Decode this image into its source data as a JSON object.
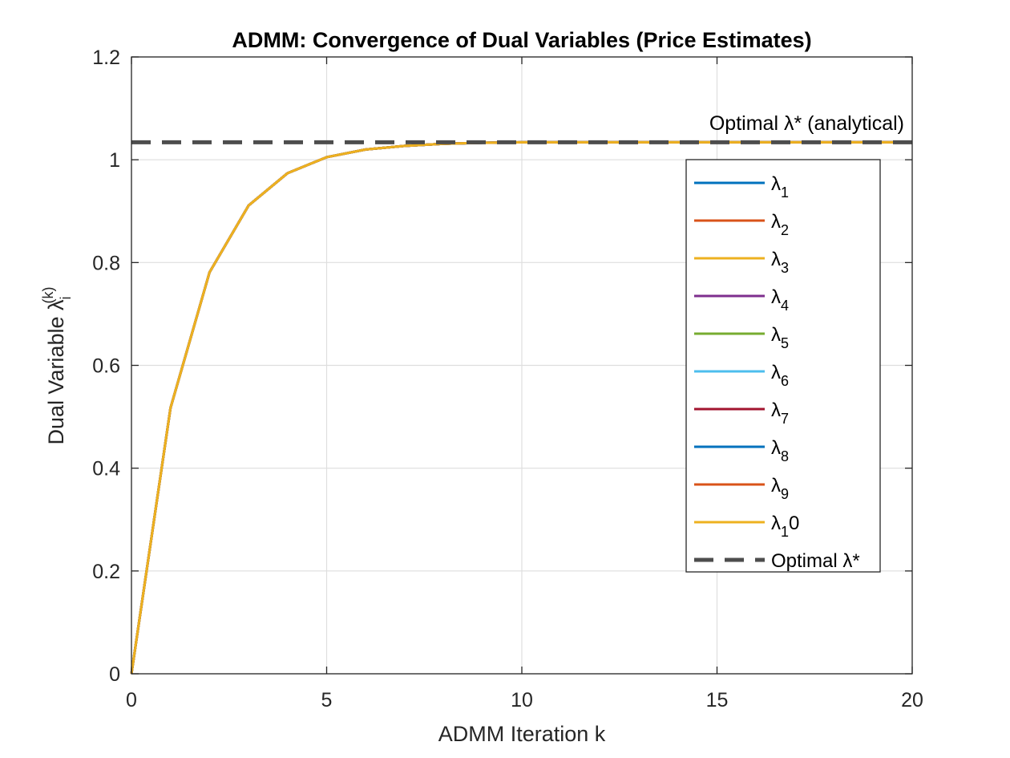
{
  "chart_data": {
    "type": "line",
    "title": "ADMM: Convergence of Dual Variables (Price Estimates)",
    "xlabel": "ADMM Iteration k",
    "ylabel": {
      "main": "Dual Variable ",
      "symbol": "λ",
      "subscript": "i",
      "superscript": "(k)"
    },
    "xlim": [
      0,
      20
    ],
    "ylim": [
      0,
      1.2
    ],
    "xticks": [
      0,
      5,
      10,
      15,
      20
    ],
    "xtick_labels": [
      "0",
      "5",
      "10",
      "15",
      "20"
    ],
    "yticks": [
      0,
      0.2,
      0.4,
      0.6,
      0.8,
      1.0,
      1.2
    ],
    "ytick_labels": [
      "0",
      "0.2",
      "0.4",
      "0.6",
      "0.8",
      "1",
      "1.2"
    ],
    "grid": true,
    "legend_position": "right",
    "x": [
      0,
      1,
      2,
      3,
      4,
      5,
      6,
      7,
      8,
      9,
      10,
      11,
      12,
      13,
      14,
      15,
      16,
      17,
      18,
      19,
      20
    ],
    "series": [
      {
        "symbol": "λ",
        "subscript": "1",
        "suffix": "",
        "color": "#0072BD",
        "values": [
          0,
          0.517,
          0.781,
          0.911,
          0.974,
          1.005,
          1.02,
          1.027,
          1.031,
          1.033,
          1.034,
          1.034,
          1.034,
          1.034,
          1.034,
          1.034,
          1.034,
          1.034,
          1.034,
          1.034,
          1.034
        ]
      },
      {
        "symbol": "λ",
        "subscript": "2",
        "suffix": "",
        "color": "#D95319",
        "values": [
          0,
          0.517,
          0.781,
          0.911,
          0.974,
          1.005,
          1.02,
          1.027,
          1.031,
          1.033,
          1.034,
          1.034,
          1.034,
          1.034,
          1.034,
          1.034,
          1.034,
          1.034,
          1.034,
          1.034,
          1.034
        ]
      },
      {
        "symbol": "λ",
        "subscript": "3",
        "suffix": "",
        "color": "#EDB120",
        "values": [
          0,
          0.517,
          0.781,
          0.911,
          0.974,
          1.005,
          1.02,
          1.027,
          1.031,
          1.033,
          1.034,
          1.034,
          1.034,
          1.034,
          1.034,
          1.034,
          1.034,
          1.034,
          1.034,
          1.034,
          1.034
        ]
      },
      {
        "symbol": "λ",
        "subscript": "4",
        "suffix": "",
        "color": "#7E2F8E",
        "values": [
          0,
          0.517,
          0.781,
          0.911,
          0.974,
          1.005,
          1.02,
          1.027,
          1.031,
          1.033,
          1.034,
          1.034,
          1.034,
          1.034,
          1.034,
          1.034,
          1.034,
          1.034,
          1.034,
          1.034,
          1.034
        ]
      },
      {
        "symbol": "λ",
        "subscript": "5",
        "suffix": "",
        "color": "#77AC30",
        "values": [
          0,
          0.517,
          0.781,
          0.911,
          0.974,
          1.005,
          1.02,
          1.027,
          1.031,
          1.033,
          1.034,
          1.034,
          1.034,
          1.034,
          1.034,
          1.034,
          1.034,
          1.034,
          1.034,
          1.034,
          1.034
        ]
      },
      {
        "symbol": "λ",
        "subscript": "6",
        "suffix": "",
        "color": "#4DBEEE",
        "values": [
          0,
          0.517,
          0.781,
          0.911,
          0.974,
          1.005,
          1.02,
          1.027,
          1.031,
          1.033,
          1.034,
          1.034,
          1.034,
          1.034,
          1.034,
          1.034,
          1.034,
          1.034,
          1.034,
          1.034,
          1.034
        ]
      },
      {
        "symbol": "λ",
        "subscript": "7",
        "suffix": "",
        "color": "#A2142F",
        "values": [
          0,
          0.517,
          0.781,
          0.911,
          0.974,
          1.005,
          1.02,
          1.027,
          1.031,
          1.033,
          1.034,
          1.034,
          1.034,
          1.034,
          1.034,
          1.034,
          1.034,
          1.034,
          1.034,
          1.034,
          1.034
        ]
      },
      {
        "symbol": "λ",
        "subscript": "8",
        "suffix": "",
        "color": "#0072BD",
        "values": [
          0,
          0.517,
          0.781,
          0.911,
          0.974,
          1.005,
          1.02,
          1.027,
          1.031,
          1.033,
          1.034,
          1.034,
          1.034,
          1.034,
          1.034,
          1.034,
          1.034,
          1.034,
          1.034,
          1.034,
          1.034
        ]
      },
      {
        "symbol": "λ",
        "subscript": "9",
        "suffix": "",
        "color": "#D95319",
        "values": [
          0,
          0.517,
          0.781,
          0.911,
          0.974,
          1.005,
          1.02,
          1.027,
          1.031,
          1.033,
          1.034,
          1.034,
          1.034,
          1.034,
          1.034,
          1.034,
          1.034,
          1.034,
          1.034,
          1.034,
          1.034
        ]
      },
      {
        "symbol": "λ",
        "subscript": "1",
        "suffix": "0",
        "color": "#EDB120",
        "values": [
          0,
          0.517,
          0.781,
          0.911,
          0.974,
          1.005,
          1.02,
          1.027,
          1.031,
          1.033,
          1.034,
          1.034,
          1.034,
          1.034,
          1.034,
          1.034,
          1.034,
          1.034,
          1.034,
          1.034,
          1.034
        ]
      }
    ],
    "reference_line": {
      "y": 1.034,
      "style": "dashed",
      "color": "#4D4D4D",
      "legend_label": "Optimal λ*"
    },
    "annotations": [
      {
        "text": "Optimal λ* (analytical)",
        "x": 20,
        "y": 1.034,
        "anchor": "end"
      }
    ]
  }
}
